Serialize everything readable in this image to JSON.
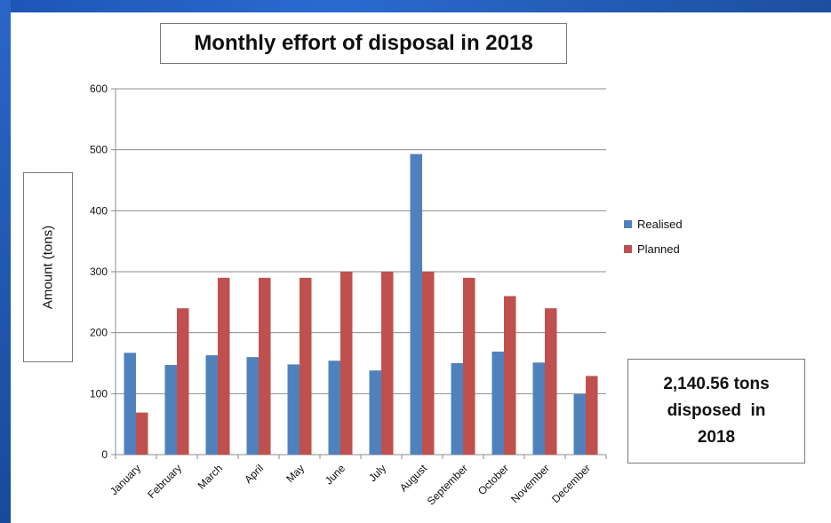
{
  "chart_data": {
    "type": "bar",
    "title": "Monthly effort of disposal in 2018",
    "ylabel": "Amount (tons)",
    "xlabel": "",
    "ylim": [
      0,
      600
    ],
    "yticks": [
      0,
      100,
      200,
      300,
      400,
      500,
      600
    ],
    "grid": true,
    "legend_position": "right",
    "categories": [
      "January",
      "February",
      "March",
      "April",
      "May",
      "June",
      "July",
      "August",
      "September",
      "October",
      "November",
      "December"
    ],
    "series": [
      {
        "name": "Realised",
        "color": "#4f81bd",
        "values": [
          167,
          147,
          163,
          160,
          148,
          154,
          138,
          493,
          150,
          169,
          151,
          99
        ]
      },
      {
        "name": "Planned",
        "color": "#c0504d",
        "values": [
          69,
          240,
          290,
          290,
          290,
          300,
          300,
          300,
          290,
          260,
          240,
          129
        ]
      }
    ]
  },
  "note": {
    "line1": "2,140.56 tons",
    "line2": "disposed  in",
    "line3": "2018"
  }
}
